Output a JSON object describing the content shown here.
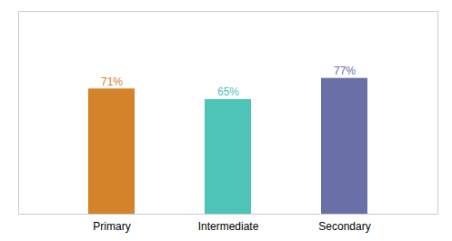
{
  "chart_data": {
    "type": "bar",
    "categories": [
      "Primary",
      "Intermediate",
      "Secondary"
    ],
    "values": [
      71,
      65,
      77
    ],
    "value_labels": [
      "71%",
      "65%",
      "77%"
    ],
    "colors": [
      "#d4832a",
      "#4ec4b8",
      "#6b6fa8"
    ],
    "ylim": [
      0,
      115
    ],
    "grid": false,
    "data_labels": true,
    "tick_labels": "x"
  }
}
